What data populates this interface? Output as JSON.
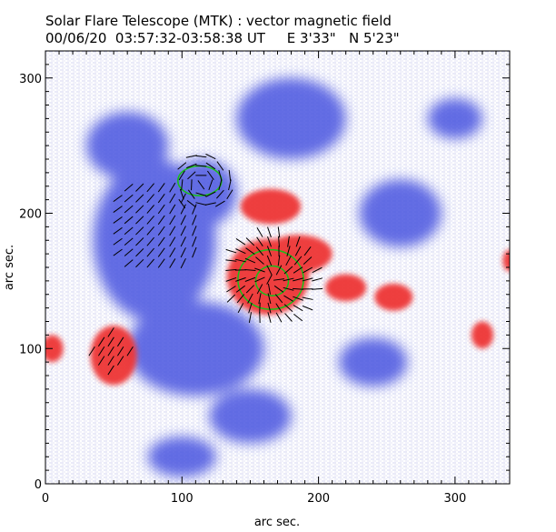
{
  "header": {
    "title": "Solar Flare Telescope (MTK) : vector magnetic field",
    "subtitle": "00/06/20  03:57:32-03:58:38 UT     E 3'33\"   N 5'23\""
  },
  "chart_data": {
    "type": "heatmap",
    "title": "Solar Flare Telescope (MTK) : vector magnetic field",
    "xlabel": "arc sec.",
    "ylabel": "arc sec.",
    "xlim": [
      0,
      340
    ],
    "ylim": [
      0,
      320
    ],
    "x_ticks": [
      0,
      100,
      200,
      300
    ],
    "y_ticks": [
      0,
      100,
      200,
      300
    ],
    "colors": {
      "positive": "#ee3535",
      "negative": "#4a55e0",
      "contour": "#18c018",
      "vector": "#000000"
    },
    "positive_regions": [
      {
        "cx": 163,
        "cy": 153,
        "rx": 30,
        "ry": 28
      },
      {
        "cx": 185,
        "cy": 170,
        "rx": 25,
        "ry": 14
      },
      {
        "cx": 165,
        "cy": 205,
        "rx": 22,
        "ry": 13
      },
      {
        "cx": 220,
        "cy": 145,
        "rx": 15,
        "ry": 10
      },
      {
        "cx": 255,
        "cy": 138,
        "rx": 14,
        "ry": 10
      },
      {
        "cx": 50,
        "cy": 95,
        "rx": 17,
        "ry": 22
      },
      {
        "cx": 5,
        "cy": 100,
        "rx": 8,
        "ry": 10
      },
      {
        "cx": 320,
        "cy": 110,
        "rx": 8,
        "ry": 10
      },
      {
        "cx": 340,
        "cy": 165,
        "rx": 5,
        "ry": 8
      }
    ],
    "negative_regions": [
      {
        "cx": 80,
        "cy": 180,
        "rx": 45,
        "ry": 60
      },
      {
        "cx": 115,
        "cy": 215,
        "rx": 25,
        "ry": 25
      },
      {
        "cx": 110,
        "cy": 100,
        "rx": 50,
        "ry": 35
      },
      {
        "cx": 180,
        "cy": 270,
        "rx": 40,
        "ry": 30
      },
      {
        "cx": 260,
        "cy": 200,
        "rx": 30,
        "ry": 25
      },
      {
        "cx": 60,
        "cy": 250,
        "rx": 30,
        "ry": 25
      },
      {
        "cx": 150,
        "cy": 50,
        "rx": 30,
        "ry": 20
      },
      {
        "cx": 300,
        "cy": 270,
        "rx": 20,
        "ry": 15
      },
      {
        "cx": 100,
        "cy": 20,
        "rx": 25,
        "ry": 15
      },
      {
        "cx": 240,
        "cy": 90,
        "rx": 25,
        "ry": 18
      }
    ],
    "contours": [
      {
        "cx": 165,
        "cy": 151,
        "rx": 24,
        "ry": 22
      },
      {
        "cx": 166,
        "cy": 150,
        "rx": 12,
        "ry": 11
      },
      {
        "cx": 113,
        "cy": 224,
        "rx": 16,
        "ry": 11
      }
    ]
  }
}
